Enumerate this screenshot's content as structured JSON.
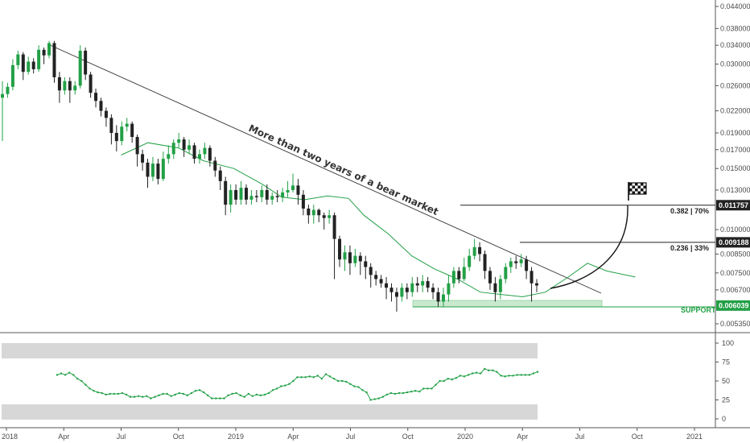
{
  "chart_data": [
    {
      "type": "candlestick",
      "price_axis": {
        "scale": "log",
        "ticks": [
          "0.044000",
          "0.038000",
          "0.034000",
          "0.030000",
          "0.026000",
          "0.022000",
          "0.019000",
          "0.017000",
          "0.015000",
          "0.013000",
          "0.010000",
          "0.008500",
          "0.007500",
          "0.006700",
          "0.005350"
        ]
      },
      "time_axis": {
        "ticks": [
          "2018",
          "Apr",
          "Jul",
          "Oct",
          "2019",
          "Apr",
          "Jul",
          "Oct",
          "2020",
          "Apr",
          "Jul",
          "Oct",
          "2021"
        ]
      },
      "price_tags": [
        {
          "value": "0.011757",
          "color": "#222222",
          "price": 0.011757
        },
        {
          "value": "0.009188",
          "color": "#222222",
          "price": 0.009188
        },
        {
          "value": "0.006039",
          "color": "#22a046",
          "price": 0.006039
        }
      ],
      "fib_levels": [
        {
          "label": "0.382 | 70%",
          "price": 0.011757
        },
        {
          "label": "0.236 | 33%",
          "price": 0.009188
        }
      ],
      "support": {
        "label": "SUPPORT",
        "price": 0.006039
      },
      "trendline_text": "More than two years of a bear market",
      "candles": [
        [
          0.024,
          0.0246,
          0.0268,
          0.018
        ],
        [
          0.0246,
          0.0258,
          0.0265,
          0.024
        ],
        [
          0.0258,
          0.0298,
          0.031,
          0.0252
        ],
        [
          0.0298,
          0.032,
          0.0328,
          0.029
        ],
        [
          0.032,
          0.0285,
          0.0325,
          0.027
        ],
        [
          0.0285,
          0.0305,
          0.0315,
          0.028
        ],
        [
          0.0305,
          0.029,
          0.0312,
          0.0282
        ],
        [
          0.029,
          0.033,
          0.034,
          0.0285
        ],
        [
          0.033,
          0.0318,
          0.0335,
          0.03
        ],
        [
          0.0318,
          0.0345,
          0.035,
          0.0312
        ],
        [
          0.0345,
          0.0275,
          0.035,
          0.0265
        ],
        [
          0.0275,
          0.0252,
          0.0285,
          0.0232
        ],
        [
          0.0252,
          0.0268,
          0.0275,
          0.0245
        ],
        [
          0.0268,
          0.0252,
          0.0275,
          0.0232
        ],
        [
          0.0252,
          0.026,
          0.0268,
          0.0245
        ],
        [
          0.026,
          0.0328,
          0.034,
          0.0255
        ],
        [
          0.0328,
          0.028,
          0.0335,
          0.027
        ],
        [
          0.028,
          0.0248,
          0.0285,
          0.024
        ],
        [
          0.0248,
          0.0235,
          0.0255,
          0.0225
        ],
        [
          0.0235,
          0.022,
          0.024,
          0.0212
        ],
        [
          0.022,
          0.021,
          0.0225,
          0.0198
        ],
        [
          0.021,
          0.019,
          0.0215,
          0.0176
        ],
        [
          0.019,
          0.018,
          0.02,
          0.0168
        ],
        [
          0.018,
          0.0198,
          0.0205,
          0.0175
        ],
        [
          0.0198,
          0.0202,
          0.021,
          0.0192
        ],
        [
          0.0202,
          0.0185,
          0.0205,
          0.0178
        ],
        [
          0.0185,
          0.0165,
          0.0188,
          0.0152
        ],
        [
          0.0165,
          0.0156,
          0.017,
          0.0148
        ],
        [
          0.0156,
          0.0142,
          0.016,
          0.0132
        ],
        [
          0.0142,
          0.0155,
          0.0162,
          0.0138
        ],
        [
          0.0155,
          0.014,
          0.016,
          0.0135
        ],
        [
          0.014,
          0.016,
          0.0168,
          0.0138
        ],
        [
          0.016,
          0.0165,
          0.0175,
          0.0155
        ],
        [
          0.0165,
          0.0178,
          0.0182,
          0.016
        ],
        [
          0.0178,
          0.0182,
          0.019,
          0.0172
        ],
        [
          0.0182,
          0.017,
          0.0185,
          0.0162
        ],
        [
          0.017,
          0.0175,
          0.0182,
          0.0165
        ],
        [
          0.0175,
          0.016,
          0.0178,
          0.0155
        ],
        [
          0.016,
          0.0165,
          0.017,
          0.0155
        ],
        [
          0.0165,
          0.0172,
          0.0178,
          0.016
        ],
        [
          0.0172,
          0.0158,
          0.0175,
          0.0152
        ],
        [
          0.0158,
          0.0148,
          0.0162,
          0.0142
        ],
        [
          0.0148,
          0.0138,
          0.0152,
          0.013
        ],
        [
          0.0138,
          0.0118,
          0.0142,
          0.011
        ],
        [
          0.0118,
          0.013,
          0.0135,
          0.0112
        ],
        [
          0.013,
          0.0122,
          0.0135,
          0.0118
        ],
        [
          0.0122,
          0.0132,
          0.0138,
          0.0118
        ],
        [
          0.0132,
          0.0122,
          0.0135,
          0.0118
        ],
        [
          0.0122,
          0.0125,
          0.013,
          0.0118
        ],
        [
          0.0125,
          0.0124,
          0.013,
          0.012
        ],
        [
          0.0124,
          0.013,
          0.0134,
          0.012
        ],
        [
          0.013,
          0.0122,
          0.0135,
          0.0118
        ],
        [
          0.0122,
          0.0125,
          0.0128,
          0.0118
        ],
        [
          0.0125,
          0.0124,
          0.013,
          0.012
        ],
        [
          0.0124,
          0.0128,
          0.0132,
          0.012
        ],
        [
          0.0128,
          0.013,
          0.0138,
          0.0124
        ],
        [
          0.013,
          0.0134,
          0.0145,
          0.0128
        ],
        [
          0.0134,
          0.0126,
          0.014,
          0.0118
        ],
        [
          0.0126,
          0.0115,
          0.013,
          0.011
        ],
        [
          0.0115,
          0.011,
          0.0118,
          0.0104
        ],
        [
          0.011,
          0.0114,
          0.0118,
          0.0104
        ],
        [
          0.0114,
          0.011,
          0.0115,
          0.0105
        ],
        [
          0.011,
          0.0108,
          0.0112,
          0.01
        ],
        [
          0.0108,
          0.011,
          0.0114,
          0.0104
        ],
        [
          0.011,
          0.0094,
          0.0112,
          0.0072
        ],
        [
          0.0094,
          0.0082,
          0.0096,
          0.0078
        ],
        [
          0.0082,
          0.0086,
          0.009,
          0.0076
        ],
        [
          0.0086,
          0.008,
          0.009,
          0.0074
        ],
        [
          0.008,
          0.0084,
          0.0088,
          0.0078
        ],
        [
          0.0084,
          0.0081,
          0.0086,
          0.0074
        ],
        [
          0.0081,
          0.0078,
          0.0084,
          0.0072
        ],
        [
          0.0078,
          0.0074,
          0.008,
          0.0068
        ],
        [
          0.0074,
          0.0072,
          0.0076,
          0.0069
        ],
        [
          0.0072,
          0.007,
          0.0074,
          0.0068
        ],
        [
          0.007,
          0.0068,
          0.0073,
          0.0063
        ],
        [
          0.0068,
          0.0066,
          0.007,
          0.0062
        ],
        [
          0.0066,
          0.0064,
          0.0068,
          0.0058
        ],
        [
          0.0064,
          0.0068,
          0.007,
          0.0062
        ],
        [
          0.0068,
          0.0066,
          0.007,
          0.0063
        ],
        [
          0.0066,
          0.007,
          0.0073,
          0.0064
        ],
        [
          0.007,
          0.0069,
          0.0073,
          0.0066
        ],
        [
          0.0069,
          0.0071,
          0.0074,
          0.0066
        ],
        [
          0.0071,
          0.0068,
          0.0073,
          0.0066
        ],
        [
          0.0068,
          0.0066,
          0.007,
          0.0063
        ],
        [
          0.0066,
          0.0062,
          0.0068,
          0.006
        ],
        [
          0.0062,
          0.0065,
          0.0068,
          0.006
        ],
        [
          0.0065,
          0.007,
          0.0074,
          0.0062
        ],
        [
          0.007,
          0.0076,
          0.0078,
          0.0068
        ],
        [
          0.0076,
          0.0072,
          0.0078,
          0.007
        ],
        [
          0.0072,
          0.0078,
          0.0083,
          0.0071
        ],
        [
          0.0078,
          0.0084,
          0.0088,
          0.0076
        ],
        [
          0.0084,
          0.0089,
          0.0094,
          0.0082
        ],
        [
          0.0089,
          0.0085,
          0.0092,
          0.0081
        ],
        [
          0.0085,
          0.0076,
          0.0087,
          0.0072
        ],
        [
          0.0076,
          0.007,
          0.0078,
          0.0067
        ],
        [
          0.007,
          0.0066,
          0.0073,
          0.0062
        ],
        [
          0.0066,
          0.0072,
          0.0074,
          0.0063
        ],
        [
          0.0072,
          0.0078,
          0.008,
          0.007
        ],
        [
          0.0078,
          0.0081,
          0.0083,
          0.0075
        ],
        [
          0.0081,
          0.008,
          0.0084,
          0.0077
        ],
        [
          0.008,
          0.0082,
          0.0085,
          0.0078
        ],
        [
          0.0082,
          0.0076,
          0.0084,
          0.0072
        ],
        [
          0.0076,
          0.007,
          0.0078,
          0.0062
        ],
        [
          0.007,
          0.0069,
          0.0072,
          0.0066
        ]
      ],
      "moving_average": [
        [
          0.0164,
          6.0
        ],
        [
          0.0178,
          7.4
        ],
        [
          0.0172,
          9.0
        ],
        [
          0.0158,
          10.3
        ],
        [
          0.015,
          11.9
        ],
        [
          0.0135,
          13.4
        ],
        [
          0.0124,
          14.4
        ],
        [
          0.0122,
          15.6
        ],
        [
          0.0125,
          16.8
        ],
        [
          0.0123,
          17.9
        ],
        [
          0.011,
          18.7
        ],
        [
          0.0097,
          20.0
        ],
        [
          0.0084,
          21.2
        ],
        [
          0.0077,
          22.4
        ],
        [
          0.0072,
          23.6
        ],
        [
          0.0066,
          24.8
        ],
        [
          0.0065,
          25.9
        ],
        [
          0.0064,
          27.0
        ],
        [
          0.0066,
          28.2
        ],
        [
          0.0073,
          29.4
        ],
        [
          0.008,
          30.4
        ],
        [
          0.0076,
          31.4
        ],
        [
          0.0073,
          32.9
        ]
      ],
      "rsi": {
        "ticks": [
          "100",
          "75",
          "50",
          "25",
          "0"
        ],
        "values": [
          58,
          60,
          58,
          61,
          58,
          53,
          50,
          45,
          40,
          37,
          35,
          34,
          32,
          33,
          33,
          33,
          34,
          32,
          29,
          29,
          30,
          29,
          30,
          27,
          29,
          31,
          33,
          33,
          30,
          32,
          34,
          33,
          31,
          34,
          37,
          38,
          35,
          31,
          27,
          27,
          27,
          27,
          31,
          33,
          34,
          31,
          29,
          33,
          30,
          32,
          31,
          32,
          34,
          38,
          40,
          43,
          44,
          46,
          50,
          55,
          55,
          55,
          56,
          55,
          57,
          53,
          59,
          56,
          53,
          50,
          50,
          49,
          46,
          43,
          42,
          38,
          35,
          25,
          26,
          27,
          29,
          32,
          34,
          33,
          34,
          34,
          35,
          36,
          37,
          36,
          40,
          40,
          40,
          45,
          50,
          50,
          53,
          52,
          54,
          57,
          56,
          58,
          60,
          61,
          60,
          66,
          64,
          64,
          62,
          57,
          56,
          57,
          57,
          58,
          58,
          58,
          58,
          60,
          62
        ]
      }
    }
  ],
  "icons": {
    "flag": "checkered-flag-icon"
  },
  "colors": {
    "up": "#22a046",
    "down": "#222222",
    "support_fill": "#c9e9cf",
    "band": "#d7d7d7"
  }
}
